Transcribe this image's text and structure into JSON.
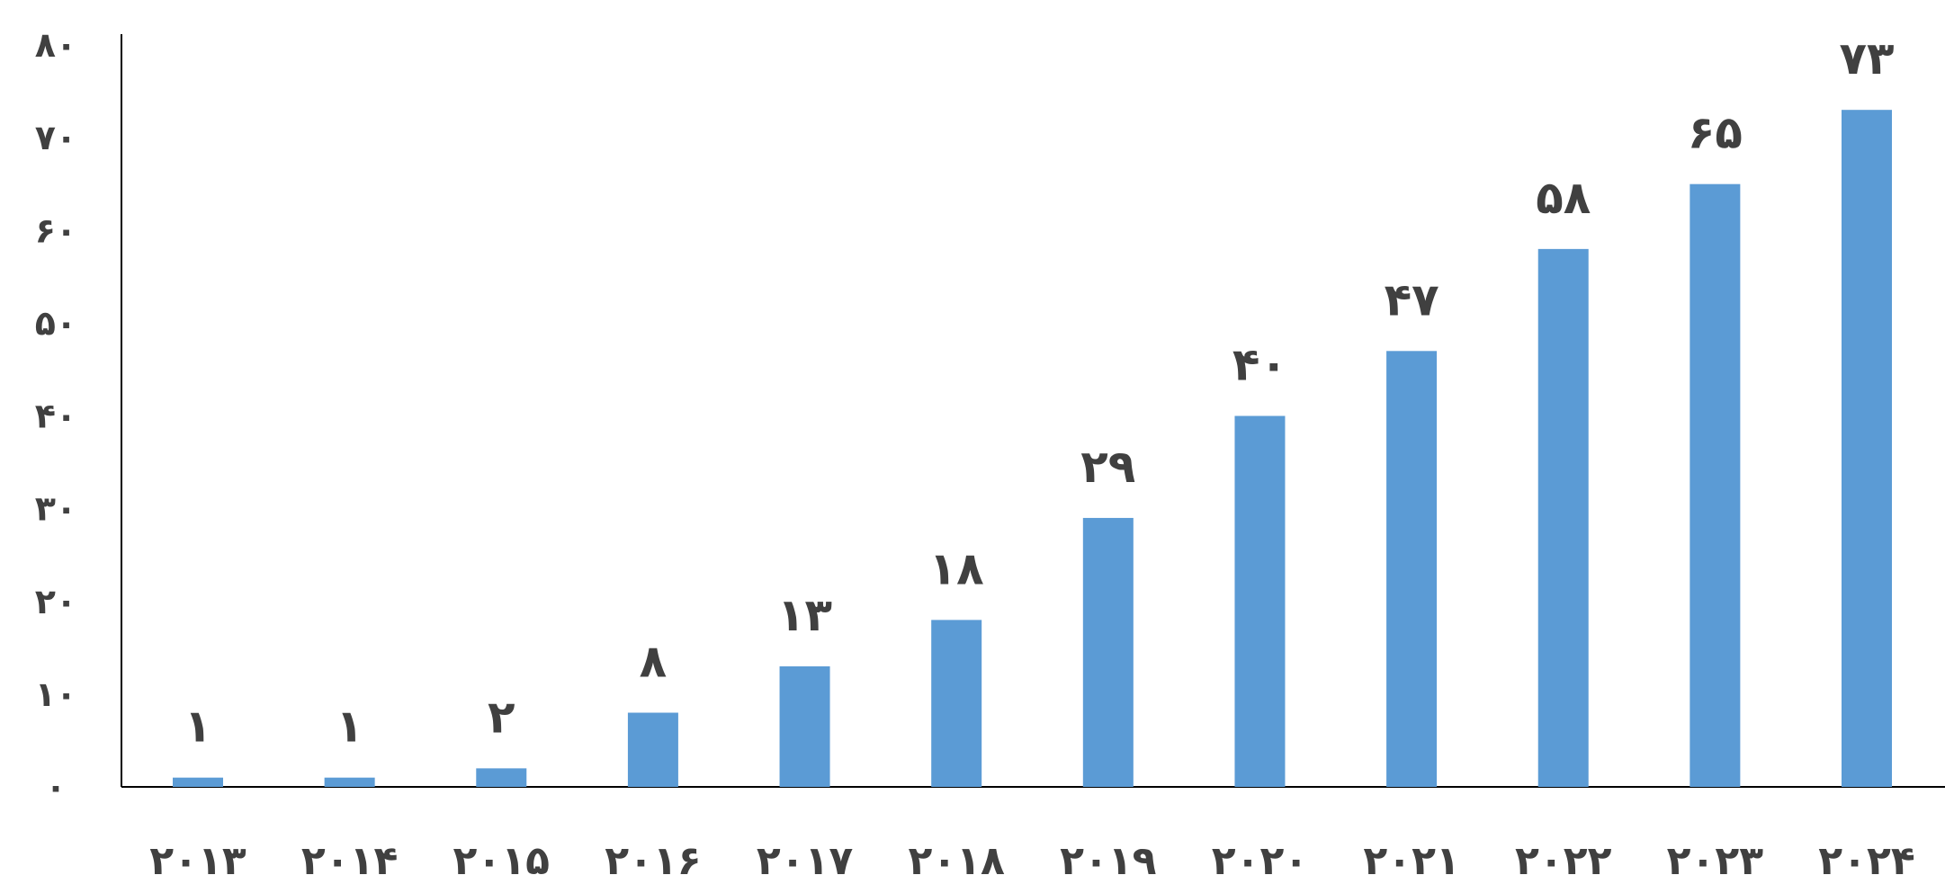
{
  "chart_data": {
    "type": "bar",
    "categories": [
      "۲۰۱۳",
      "۲۰۱۴",
      "۲۰۱۵",
      "۲۰۱۶",
      "۲۰۱۷",
      "۲۰۱۸",
      "۲۰۱۹",
      "۲۰۲۰",
      "۲۰۲۱",
      "۲۰۲۲",
      "۲۰۲۳",
      "۲۰۲۴"
    ],
    "values": [
      1,
      1,
      2,
      8,
      13,
      18,
      29,
      40,
      47,
      58,
      65,
      73
    ],
    "data_labels": [
      "۱",
      "۱",
      "۲",
      "۸",
      "۱۳",
      "۱۸",
      "۲۹",
      "۴۰",
      "۴۷",
      "۵۸",
      "۶۵",
      "۷۳"
    ],
    "y_ticks": [
      0,
      10,
      20,
      30,
      40,
      50,
      60,
      70,
      80
    ],
    "y_tick_labels": [
      "۰",
      "۱۰",
      "۲۰",
      "۳۰",
      "۴۰",
      "۵۰",
      "۶۰",
      "۷۰",
      "۸۰"
    ],
    "ylim": [
      0,
      80
    ],
    "title": "",
    "xlabel": "",
    "ylabel": "",
    "grid": false,
    "legend": "none",
    "colors": {
      "bar": "#5B9BD5",
      "axis": "#000000",
      "text": "#404040"
    }
  }
}
